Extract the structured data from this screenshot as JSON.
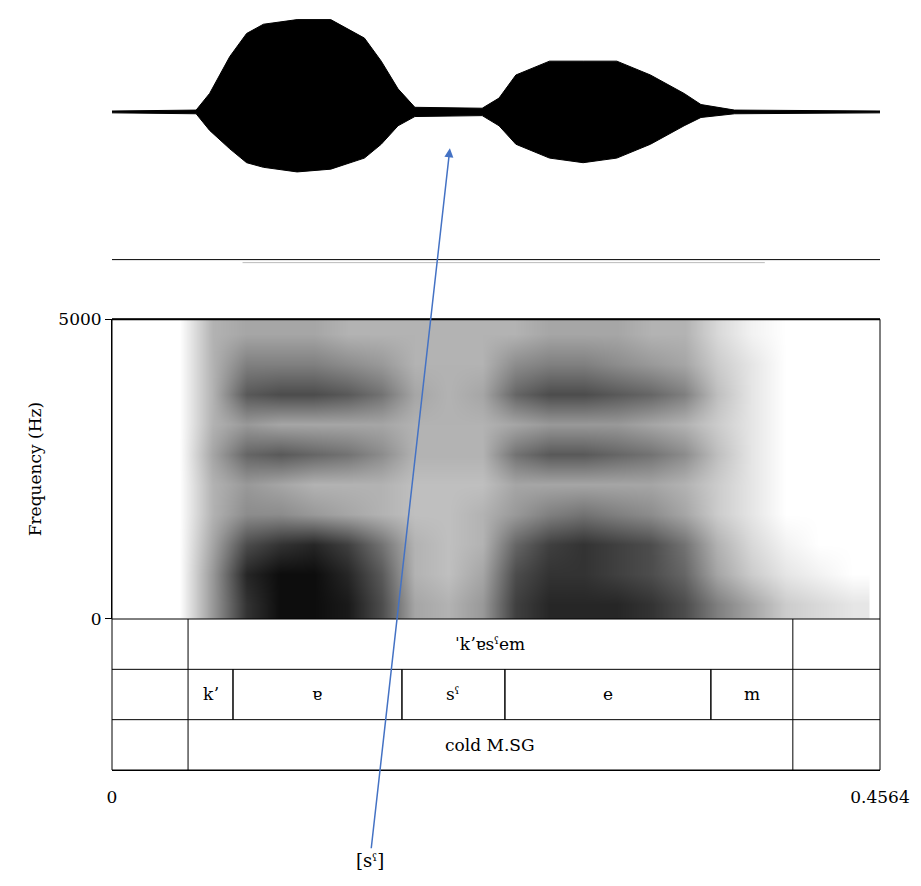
{
  "chart_data": {
    "type": "spectrogram",
    "y_label": "Frequency (Hz)",
    "xlim": [
      0,
      0.4564
    ],
    "xticks": [
      0,
      0.4564
    ],
    "ylim": [
      0,
      5000
    ],
    "yticks": [
      0,
      5000
    ],
    "grid": false,
    "spectrogram": {
      "x": [
        0.04,
        0.06,
        0.08,
        0.1,
        0.12,
        0.14,
        0.16,
        0.18,
        0.2,
        0.22,
        0.24,
        0.26,
        0.28,
        0.3,
        0.32,
        0.34,
        0.36,
        0.38,
        0.4,
        0.42,
        0.44
      ],
      "y": [
        250,
        750,
        1250,
        1750,
        2250,
        2750,
        3250,
        3750,
        4250,
        4750
      ],
      "z": [
        [
          0,
          0.4,
          0.8,
          0.95,
          0.95,
          0.9,
          0.7,
          0.35,
          0.3,
          0.4,
          0.75,
          0.85,
          0.85,
          0.85,
          0.8,
          0.7,
          0.5,
          0.35,
          0.2,
          0.15,
          0.1
        ],
        [
          0,
          0.4,
          0.85,
          0.95,
          0.95,
          0.85,
          0.65,
          0.3,
          0.25,
          0.35,
          0.7,
          0.8,
          0.8,
          0.75,
          0.7,
          0.6,
          0.35,
          0.2,
          0.1,
          0.05,
          0
        ],
        [
          0,
          0.35,
          0.7,
          0.8,
          0.85,
          0.75,
          0.55,
          0.3,
          0.25,
          0.3,
          0.6,
          0.75,
          0.8,
          0.75,
          0.7,
          0.55,
          0.3,
          0.15,
          0.05,
          0,
          0
        ],
        [
          0,
          0.3,
          0.45,
          0.45,
          0.4,
          0.35,
          0.3,
          0.25,
          0.25,
          0.3,
          0.4,
          0.5,
          0.55,
          0.5,
          0.45,
          0.35,
          0.2,
          0.1,
          0,
          0,
          0
        ],
        [
          0,
          0.3,
          0.4,
          0.35,
          0.3,
          0.3,
          0.3,
          0.25,
          0.25,
          0.25,
          0.35,
          0.35,
          0.35,
          0.35,
          0.35,
          0.3,
          0.2,
          0.1,
          0,
          0,
          0
        ],
        [
          0,
          0.35,
          0.6,
          0.65,
          0.6,
          0.55,
          0.45,
          0.3,
          0.3,
          0.3,
          0.55,
          0.65,
          0.65,
          0.6,
          0.55,
          0.45,
          0.25,
          0.1,
          0,
          0,
          0
        ],
        [
          0,
          0.3,
          0.4,
          0.35,
          0.35,
          0.35,
          0.35,
          0.3,
          0.3,
          0.3,
          0.35,
          0.4,
          0.4,
          0.4,
          0.35,
          0.3,
          0.2,
          0.1,
          0,
          0,
          0
        ],
        [
          0,
          0.3,
          0.65,
          0.7,
          0.7,
          0.65,
          0.55,
          0.35,
          0.3,
          0.35,
          0.6,
          0.7,
          0.7,
          0.65,
          0.6,
          0.5,
          0.25,
          0.1,
          0,
          0,
          0
        ],
        [
          0,
          0.3,
          0.5,
          0.5,
          0.5,
          0.45,
          0.4,
          0.3,
          0.3,
          0.3,
          0.45,
          0.5,
          0.5,
          0.45,
          0.4,
          0.35,
          0.2,
          0.1,
          0,
          0,
          0
        ],
        [
          0,
          0.3,
          0.35,
          0.35,
          0.35,
          0.3,
          0.3,
          0.3,
          0.3,
          0.3,
          0.3,
          0.35,
          0.35,
          0.35,
          0.3,
          0.3,
          0.15,
          0.05,
          0,
          0,
          0
        ]
      ]
    },
    "waveform": {
      "x": [
        0,
        0.05,
        0.058,
        0.07,
        0.08,
        0.09,
        0.11,
        0.13,
        0.15,
        0.16,
        0.17,
        0.18,
        0.22,
        0.23,
        0.24,
        0.26,
        0.28,
        0.3,
        0.32,
        0.34,
        0.35,
        0.37,
        0.4564
      ],
      "upper": [
        0.01,
        0.02,
        0.2,
        0.6,
        0.85,
        0.95,
        1.0,
        1.0,
        0.8,
        0.55,
        0.25,
        0.05,
        0.04,
        0.15,
        0.4,
        0.55,
        0.55,
        0.55,
        0.4,
        0.2,
        0.08,
        0.02,
        0.01
      ],
      "lower": [
        -0.01,
        -0.02,
        -0.2,
        -0.4,
        -0.55,
        -0.6,
        -0.65,
        -0.62,
        -0.5,
        -0.35,
        -0.15,
        -0.05,
        -0.04,
        -0.15,
        -0.35,
        -0.5,
        -0.55,
        -0.5,
        -0.35,
        -0.15,
        -0.06,
        -0.02,
        -0.01
      ],
      "ylim": [
        -1.6,
        1.05
      ]
    },
    "tiers": [
      [
        {
          "start": 0.0452,
          "end": 0.4046,
          "label": "ˈkʼɐsˤem"
        }
      ],
      [
        {
          "start": 0.0452,
          "end": 0.0719,
          "label": "kʼ"
        },
        {
          "start": 0.0719,
          "end": 0.1723,
          "label": "ɐ"
        },
        {
          "start": 0.1723,
          "end": 0.2335,
          "label": "sˤ"
        },
        {
          "start": 0.2335,
          "end": 0.3559,
          "label": "e"
        },
        {
          "start": 0.3559,
          "end": 0.4046,
          "label": "m"
        }
      ],
      [
        {
          "start": 0.0452,
          "end": 0.4046,
          "label": "cold M.SG"
        }
      ]
    ],
    "annotations": [
      {
        "text": "[sˤ]",
        "x": 0.2008,
        "color": "#4472c4"
      }
    ]
  }
}
